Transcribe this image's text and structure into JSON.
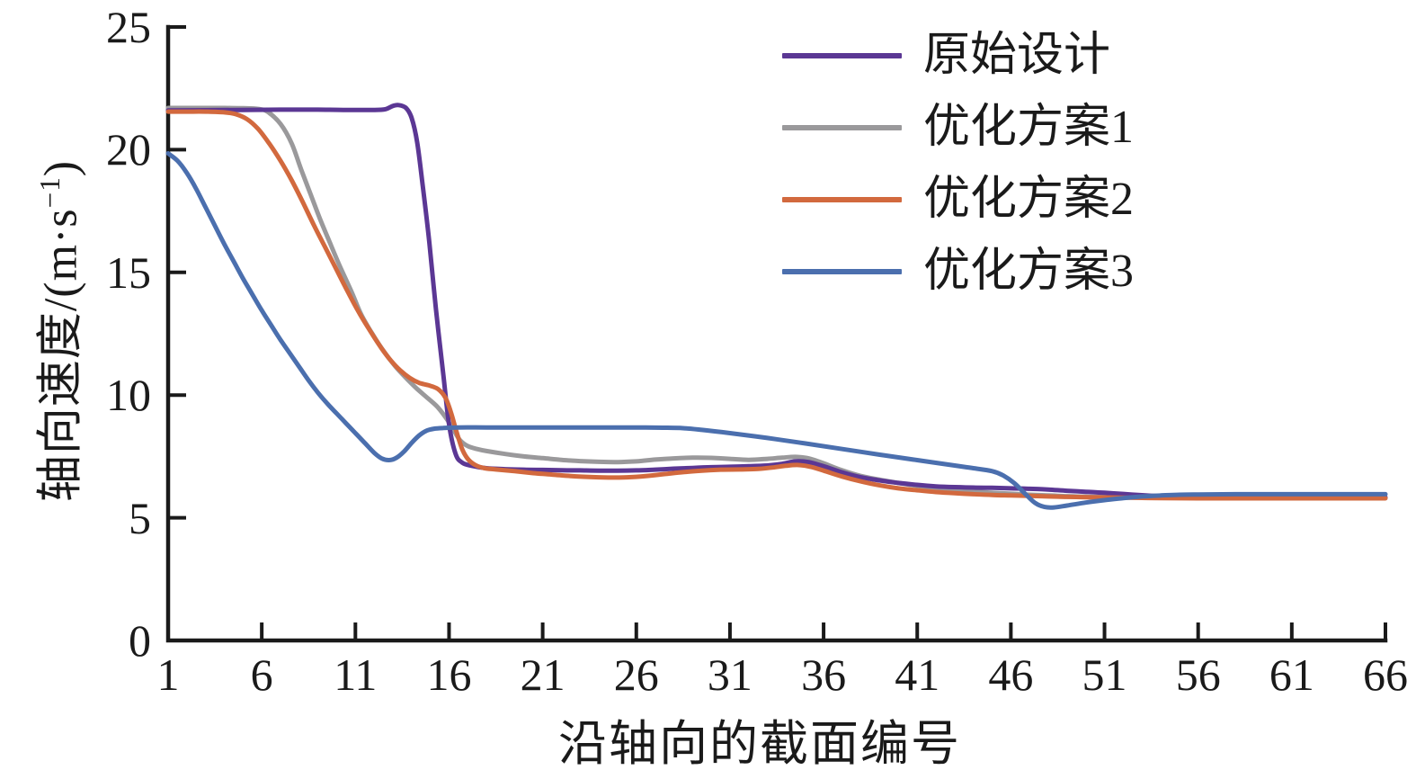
{
  "figure": {
    "background": "#ffffff",
    "axis_color": "#1a1a1a",
    "y_axis": {
      "title_prefix": "轴向速度/(m·s",
      "title_sup": "−1",
      "title_suffix": ")",
      "ticks": [
        0,
        5,
        10,
        15,
        20,
        25
      ]
    },
    "x_axis": {
      "title": "沿轴向的截面编号",
      "ticks": [
        1,
        6,
        11,
        16,
        21,
        26,
        31,
        36,
        41,
        46,
        51,
        56,
        61,
        66
      ]
    }
  },
  "chart_data": {
    "type": "line",
    "title": "",
    "xlabel": "沿轴向的截面编号",
    "ylabel": "轴向速度/(m·s⁻¹)",
    "xlim": [
      1,
      66
    ],
    "ylim": [
      0,
      25
    ],
    "x_ticks": [
      1,
      6,
      11,
      16,
      21,
      26,
      31,
      36,
      41,
      46,
      51,
      56,
      61,
      66
    ],
    "y_ticks": [
      0,
      5,
      10,
      15,
      20,
      25
    ],
    "grid": false,
    "legend_position": "upper right",
    "series": [
      {
        "name": "原始设计",
        "color": "#5B3794",
        "points": [
          [
            1,
            21.6
          ],
          [
            3,
            21.61
          ],
          [
            5,
            21.62
          ],
          [
            7,
            21.63
          ],
          [
            9,
            21.63
          ],
          [
            10.5,
            21.62
          ],
          [
            12,
            21.62
          ],
          [
            12.6,
            21.65
          ],
          [
            13,
            21.78
          ],
          [
            13.3,
            21.82
          ],
          [
            13.7,
            21.7
          ],
          [
            14,
            21.3
          ],
          [
            14.3,
            20.3
          ],
          [
            14.6,
            18.5
          ],
          [
            14.95,
            16.2
          ],
          [
            15.3,
            13.5
          ],
          [
            15.7,
            10.8
          ],
          [
            16,
            8.8
          ],
          [
            16.35,
            7.6
          ],
          [
            16.7,
            7.25
          ],
          [
            17.2,
            7.12
          ],
          [
            18,
            7.02
          ],
          [
            19,
            6.98
          ],
          [
            20,
            6.96
          ],
          [
            21,
            6.95
          ],
          [
            22,
            6.94
          ],
          [
            23,
            6.93
          ],
          [
            24,
            6.92
          ],
          [
            25,
            6.92
          ],
          [
            26,
            6.93
          ],
          [
            27,
            6.96
          ],
          [
            28,
            7.0
          ],
          [
            29,
            7.03
          ],
          [
            30,
            7.06
          ],
          [
            31,
            7.08
          ],
          [
            32,
            7.1
          ],
          [
            33,
            7.13
          ],
          [
            33.8,
            7.2
          ],
          [
            34.5,
            7.3
          ],
          [
            35.2,
            7.27
          ],
          [
            36,
            7.1
          ],
          [
            37,
            6.85
          ],
          [
            38,
            6.65
          ],
          [
            39,
            6.52
          ],
          [
            40,
            6.42
          ],
          [
            41,
            6.34
          ],
          [
            42,
            6.28
          ],
          [
            43,
            6.25
          ],
          [
            44,
            6.23
          ],
          [
            45,
            6.22
          ],
          [
            46,
            6.2
          ],
          [
            47,
            6.18
          ],
          [
            48,
            6.15
          ],
          [
            49,
            6.1
          ],
          [
            50,
            6.06
          ],
          [
            51,
            6.02
          ],
          [
            52,
            5.97
          ],
          [
            53,
            5.92
          ],
          [
            54,
            5.88
          ],
          [
            55,
            5.85
          ],
          [
            56,
            5.84
          ],
          [
            58,
            5.83
          ],
          [
            60,
            5.83
          ],
          [
            63,
            5.83
          ],
          [
            66,
            5.83
          ]
        ]
      },
      {
        "name": "优化方案1",
        "color": "#9A999B",
        "points": [
          [
            1,
            21.7
          ],
          [
            2,
            21.7
          ],
          [
            3,
            21.7
          ],
          [
            4,
            21.7
          ],
          [
            5,
            21.69
          ],
          [
            5.8,
            21.66
          ],
          [
            6.3,
            21.55
          ],
          [
            7,
            21.05
          ],
          [
            7.6,
            20.25
          ],
          [
            8.1,
            19.2
          ],
          [
            8.6,
            18.2
          ],
          [
            9.1,
            17.2
          ],
          [
            9.7,
            16.1
          ],
          [
            10.2,
            15.2
          ],
          [
            10.8,
            14.2
          ],
          [
            11.3,
            13.3
          ],
          [
            11.9,
            12.5
          ],
          [
            12.5,
            11.8
          ],
          [
            13.1,
            11.2
          ],
          [
            13.7,
            10.7
          ],
          [
            14.3,
            10.25
          ],
          [
            14.9,
            9.85
          ],
          [
            15.4,
            9.5
          ],
          [
            15.9,
            9.0
          ],
          [
            16.3,
            8.5
          ],
          [
            16.6,
            8.15
          ],
          [
            17,
            7.92
          ],
          [
            17.5,
            7.8
          ],
          [
            18,
            7.72
          ],
          [
            19,
            7.6
          ],
          [
            20,
            7.5
          ],
          [
            21,
            7.43
          ],
          [
            22,
            7.36
          ],
          [
            23,
            7.31
          ],
          [
            24,
            7.28
          ],
          [
            25,
            7.27
          ],
          [
            26,
            7.3
          ],
          [
            27,
            7.37
          ],
          [
            28,
            7.42
          ],
          [
            29,
            7.45
          ],
          [
            30,
            7.44
          ],
          [
            31,
            7.4
          ],
          [
            32,
            7.36
          ],
          [
            33,
            7.4
          ],
          [
            33.8,
            7.45
          ],
          [
            34.5,
            7.48
          ],
          [
            35.2,
            7.42
          ],
          [
            36,
            7.22
          ],
          [
            37,
            6.93
          ],
          [
            38,
            6.7
          ],
          [
            39,
            6.55
          ],
          [
            40,
            6.42
          ],
          [
            41,
            6.3
          ],
          [
            42,
            6.2
          ],
          [
            43,
            6.13
          ],
          [
            44,
            6.07
          ],
          [
            45,
            6.02
          ],
          [
            46,
            5.98
          ],
          [
            47,
            5.94
          ],
          [
            48,
            5.91
          ],
          [
            49,
            5.88
          ],
          [
            50,
            5.86
          ],
          [
            51,
            5.85
          ],
          [
            52,
            5.84
          ],
          [
            54,
            5.83
          ],
          [
            56,
            5.82
          ],
          [
            58,
            5.82
          ],
          [
            60,
            5.82
          ],
          [
            63,
            5.82
          ],
          [
            66,
            5.82
          ]
        ]
      },
      {
        "name": "优化方案2",
        "color": "#D2693E",
        "points": [
          [
            1,
            21.55
          ],
          [
            2,
            21.55
          ],
          [
            3,
            21.55
          ],
          [
            4,
            21.52
          ],
          [
            4.6,
            21.45
          ],
          [
            5.2,
            21.25
          ],
          [
            5.8,
            20.85
          ],
          [
            6.4,
            20.25
          ],
          [
            7,
            19.55
          ],
          [
            7.6,
            18.75
          ],
          [
            8.2,
            17.85
          ],
          [
            8.8,
            16.9
          ],
          [
            9.4,
            16.0
          ],
          [
            10,
            15.1
          ],
          [
            10.6,
            14.2
          ],
          [
            11.2,
            13.35
          ],
          [
            11.8,
            12.6
          ],
          [
            12.4,
            11.9
          ],
          [
            12.9,
            11.4
          ],
          [
            13.4,
            11.0
          ],
          [
            13.9,
            10.7
          ],
          [
            14.4,
            10.5
          ],
          [
            14.9,
            10.4
          ],
          [
            15.4,
            10.25
          ],
          [
            15.8,
            9.9
          ],
          [
            16.1,
            9.3
          ],
          [
            16.4,
            8.5
          ],
          [
            16.7,
            7.8
          ],
          [
            17,
            7.4
          ],
          [
            17.4,
            7.15
          ],
          [
            17.9,
            7.02
          ],
          [
            18.5,
            6.97
          ],
          [
            19.5,
            6.9
          ],
          [
            20.5,
            6.82
          ],
          [
            21.5,
            6.76
          ],
          [
            22.5,
            6.7
          ],
          [
            23.5,
            6.66
          ],
          [
            24.5,
            6.64
          ],
          [
            25.5,
            6.65
          ],
          [
            26.5,
            6.7
          ],
          [
            27.5,
            6.78
          ],
          [
            28.5,
            6.86
          ],
          [
            29.5,
            6.92
          ],
          [
            30.5,
            6.96
          ],
          [
            31.5,
            6.97
          ],
          [
            32.5,
            6.99
          ],
          [
            33.3,
            7.05
          ],
          [
            34,
            7.12
          ],
          [
            34.6,
            7.15
          ],
          [
            35.3,
            7.08
          ],
          [
            36,
            6.92
          ],
          [
            37,
            6.68
          ],
          [
            38,
            6.48
          ],
          [
            39,
            6.32
          ],
          [
            40,
            6.2
          ],
          [
            41,
            6.12
          ],
          [
            42,
            6.05
          ],
          [
            43,
            6.0
          ],
          [
            44,
            5.96
          ],
          [
            45,
            5.93
          ],
          [
            46,
            5.91
          ],
          [
            47,
            5.89
          ],
          [
            48,
            5.87
          ],
          [
            49,
            5.85
          ],
          [
            50,
            5.84
          ],
          [
            51,
            5.83
          ],
          [
            52,
            5.82
          ],
          [
            54,
            5.8
          ],
          [
            56,
            5.79
          ],
          [
            58,
            5.79
          ],
          [
            60,
            5.79
          ],
          [
            63,
            5.79
          ],
          [
            66,
            5.79
          ]
        ]
      },
      {
        "name": "优化方案3",
        "color": "#4B6FAE",
        "points": [
          [
            1,
            19.85
          ],
          [
            1.5,
            19.55
          ],
          [
            2,
            19.05
          ],
          [
            2.5,
            18.4
          ],
          [
            3,
            17.65
          ],
          [
            3.5,
            16.9
          ],
          [
            4,
            16.15
          ],
          [
            4.5,
            15.45
          ],
          [
            5,
            14.75
          ],
          [
            5.5,
            14.1
          ],
          [
            6,
            13.45
          ],
          [
            6.5,
            12.85
          ],
          [
            7,
            12.25
          ],
          [
            7.5,
            11.7
          ],
          [
            8,
            11.15
          ],
          [
            8.5,
            10.6
          ],
          [
            9,
            10.1
          ],
          [
            9.5,
            9.65
          ],
          [
            10,
            9.25
          ],
          [
            10.5,
            8.85
          ],
          [
            11,
            8.45
          ],
          [
            11.5,
            8.05
          ],
          [
            12,
            7.65
          ],
          [
            12.4,
            7.42
          ],
          [
            12.8,
            7.35
          ],
          [
            13.2,
            7.45
          ],
          [
            13.6,
            7.7
          ],
          [
            14,
            8.05
          ],
          [
            14.4,
            8.35
          ],
          [
            14.8,
            8.55
          ],
          [
            15.2,
            8.63
          ],
          [
            15.7,
            8.66
          ],
          [
            16.5,
            8.68
          ],
          [
            18,
            8.68
          ],
          [
            20,
            8.68
          ],
          [
            22,
            8.68
          ],
          [
            24,
            8.68
          ],
          [
            26,
            8.68
          ],
          [
            27.5,
            8.67
          ],
          [
            28.5,
            8.65
          ],
          [
            29.5,
            8.58
          ],
          [
            31,
            8.45
          ],
          [
            33,
            8.25
          ],
          [
            35,
            8.03
          ],
          [
            37,
            7.8
          ],
          [
            39,
            7.57
          ],
          [
            41,
            7.35
          ],
          [
            43,
            7.13
          ],
          [
            44,
            7.02
          ],
          [
            45,
            6.9
          ],
          [
            45.6,
            6.72
          ],
          [
            46.2,
            6.4
          ],
          [
            46.8,
            5.95
          ],
          [
            47.3,
            5.6
          ],
          [
            47.8,
            5.44
          ],
          [
            48.3,
            5.42
          ],
          [
            49,
            5.5
          ],
          [
            50,
            5.62
          ],
          [
            51,
            5.72
          ],
          [
            52,
            5.8
          ],
          [
            53,
            5.87
          ],
          [
            54,
            5.91
          ],
          [
            55,
            5.94
          ],
          [
            56,
            5.95
          ],
          [
            58,
            5.96
          ],
          [
            60,
            5.96
          ],
          [
            63,
            5.96
          ],
          [
            66,
            5.96
          ]
        ]
      }
    ]
  }
}
